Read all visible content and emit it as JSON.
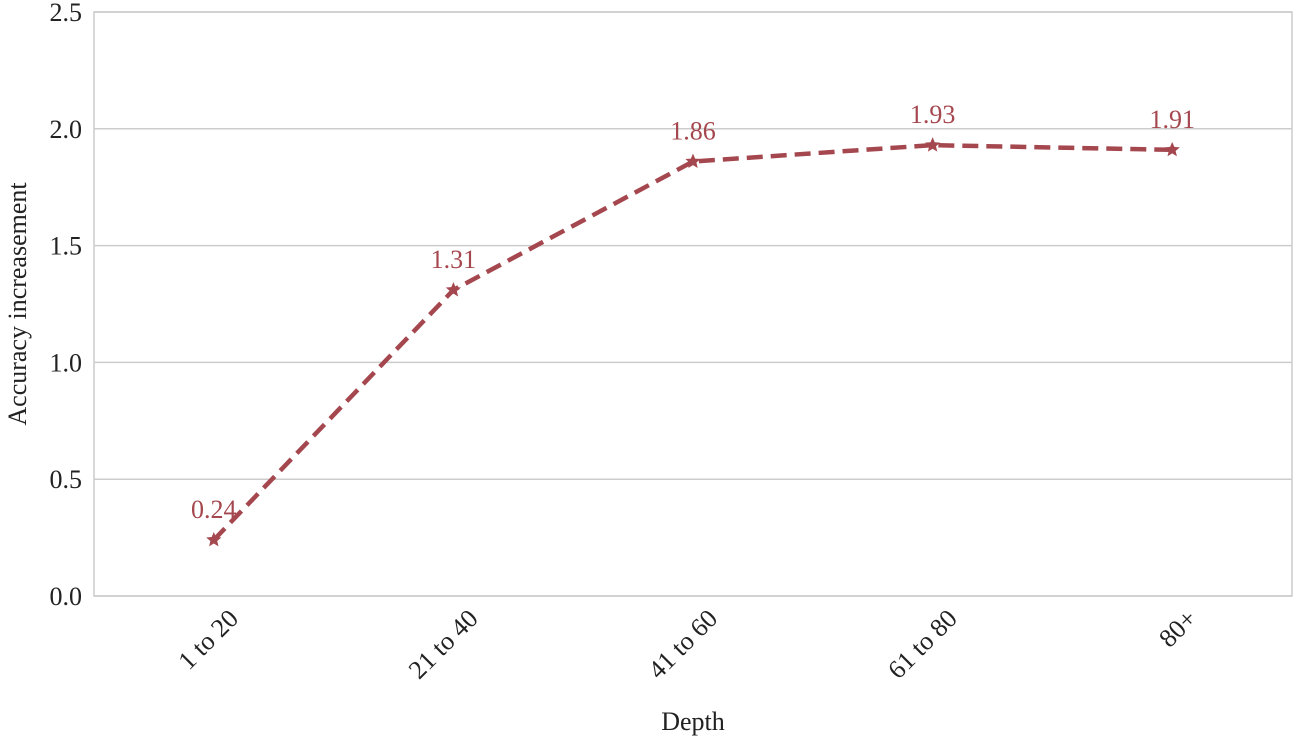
{
  "chart_data": {
    "type": "line",
    "x_label": "Depth",
    "y_label": "Accuracy increasement",
    "categories": [
      "1 to 20",
      "21 to 40",
      "41 to 60",
      "61 to 80",
      "80+"
    ],
    "values": [
      0.24,
      1.31,
      1.86,
      1.93,
      1.91
    ],
    "color": "#a5474e",
    "ylim": [
      0,
      2.5
    ],
    "yticks": [
      {
        "value": 0,
        "label": "0.0"
      },
      0.5,
      {
        "value": 1,
        "label": "1.0"
      },
      1.5,
      {
        "value": 2,
        "label": "2.0"
      },
      2.5
    ],
    "grid": true
  }
}
